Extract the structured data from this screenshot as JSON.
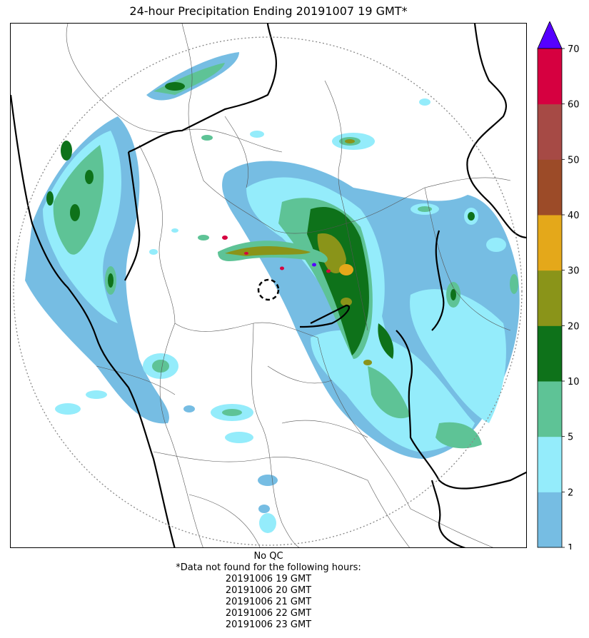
{
  "title": "24-hour Precipitation Ending 20191007 19 GMT*",
  "colorbar": {
    "ticks": [
      "1",
      "2",
      "5",
      "10",
      "20",
      "30",
      "40",
      "50",
      "60",
      "70"
    ],
    "bins": [
      {
        "from": 1,
        "to": 2,
        "color": "#76bde3"
      },
      {
        "from": 2,
        "to": 5,
        "color": "#94ecfb"
      },
      {
        "from": 5,
        "to": 10,
        "color": "#5ec396"
      },
      {
        "from": 10,
        "to": 20,
        "color": "#0e721a"
      },
      {
        "from": 20,
        "to": 30,
        "color": "#8a9419"
      },
      {
        "from": 30,
        "to": 40,
        "color": "#e4a81a"
      },
      {
        "from": 40,
        "to": 50,
        "color": "#9c4b28"
      },
      {
        "from": 50,
        "to": 60,
        "color": "#a64a45"
      },
      {
        "from": 60,
        "to": 70,
        "color": "#d60040"
      }
    ],
    "overflow_color": "#5500ff",
    "extend": "max"
  },
  "footer": {
    "qc": "No QC",
    "note": "*Data not found for the following hours:",
    "hours": [
      "20191006 19 GMT",
      "20191006 20 GMT",
      "20191006 21 GMT",
      "20191006 22 GMT",
      "20191006 23 GMT"
    ]
  },
  "map": {
    "range_ring": "dotted",
    "radar_marker": "dashed-circle",
    "boundary_color": "#000000",
    "district_line_color": "#555555"
  }
}
